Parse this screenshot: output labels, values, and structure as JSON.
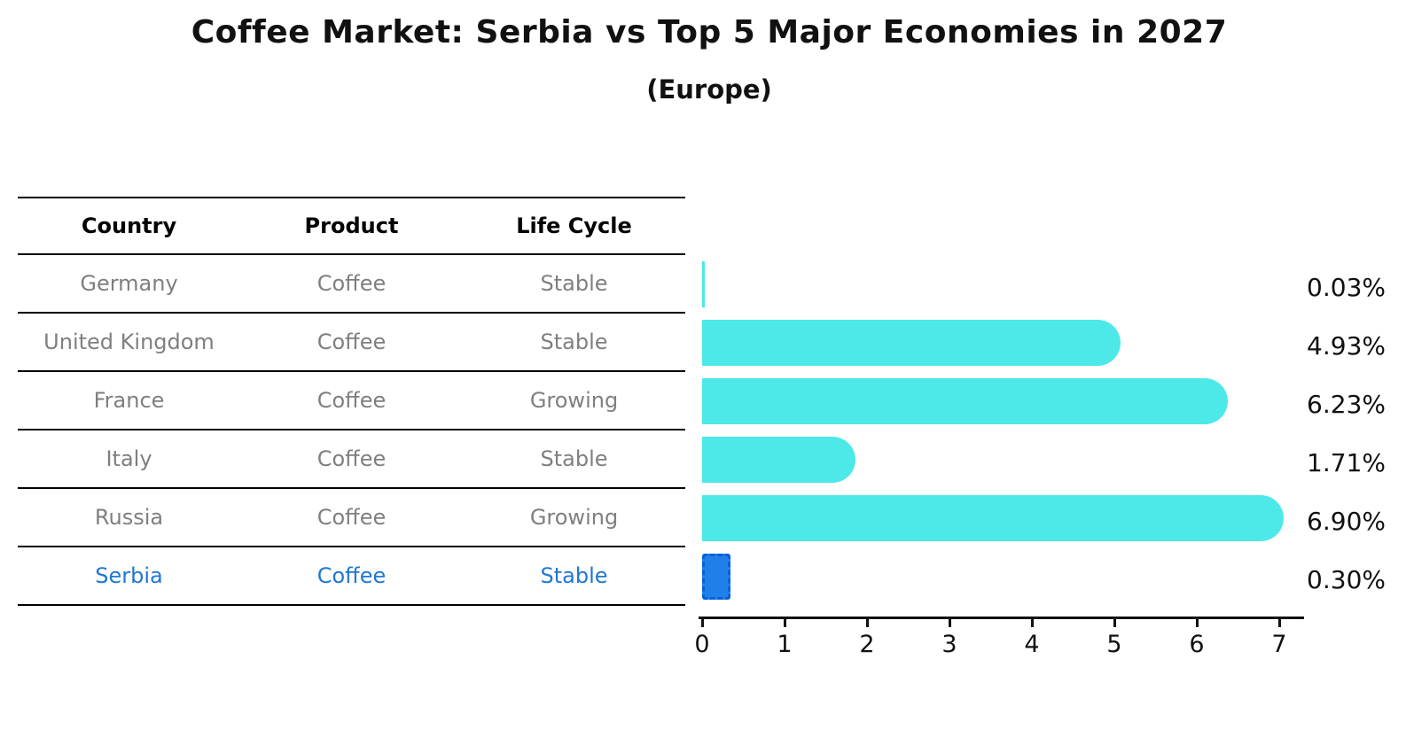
{
  "title": "Coffee Market: Serbia vs Top 5 Major Economies in 2027",
  "subtitle": "(Europe)",
  "table": {
    "headers": [
      "Country",
      "Product",
      "Life Cycle"
    ],
    "rows": [
      {
        "country": "Germany",
        "product": "Coffee",
        "life_cycle": "Stable",
        "highlight": false
      },
      {
        "country": "United Kingdom",
        "product": "Coffee",
        "life_cycle": "Stable",
        "highlight": false
      },
      {
        "country": "France",
        "product": "Coffee",
        "life_cycle": "Growing",
        "highlight": false
      },
      {
        "country": "Italy",
        "product": "Coffee",
        "life_cycle": "Stable",
        "highlight": false
      },
      {
        "country": "Russia",
        "product": "Coffee",
        "life_cycle": "Growing",
        "highlight": false
      },
      {
        "country": "Serbia",
        "product": "Coffee",
        "life_cycle": "Stable",
        "highlight": true
      }
    ]
  },
  "chart_data": {
    "type": "bar",
    "orientation": "horizontal",
    "title": "Coffee Market: Serbia vs Top 5 Major Economies in 2027",
    "subtitle": "(Europe)",
    "categories": [
      "Germany",
      "United Kingdom",
      "France",
      "Italy",
      "Russia",
      "Serbia"
    ],
    "values": [
      0.03,
      4.93,
      6.23,
      1.71,
      6.9,
      0.3
    ],
    "value_labels": [
      "0.03%",
      "4.93%",
      "6.23%",
      "1.71%",
      "6.90%",
      "0.30%"
    ],
    "xlim": [
      0,
      7
    ],
    "x_tick_labels": [
      "0",
      "1",
      "2",
      "3",
      "4",
      "5",
      "6",
      "7"
    ],
    "grid": false,
    "legend": "none",
    "highlight_index": 5,
    "bar_color": "#4de8e8",
    "highlight_bar_color": "#2080ea",
    "highlight_border_color": "#0b5fd6",
    "highlight_text_color": "#1f77d2",
    "row_text_color": "#7f7f7f"
  }
}
